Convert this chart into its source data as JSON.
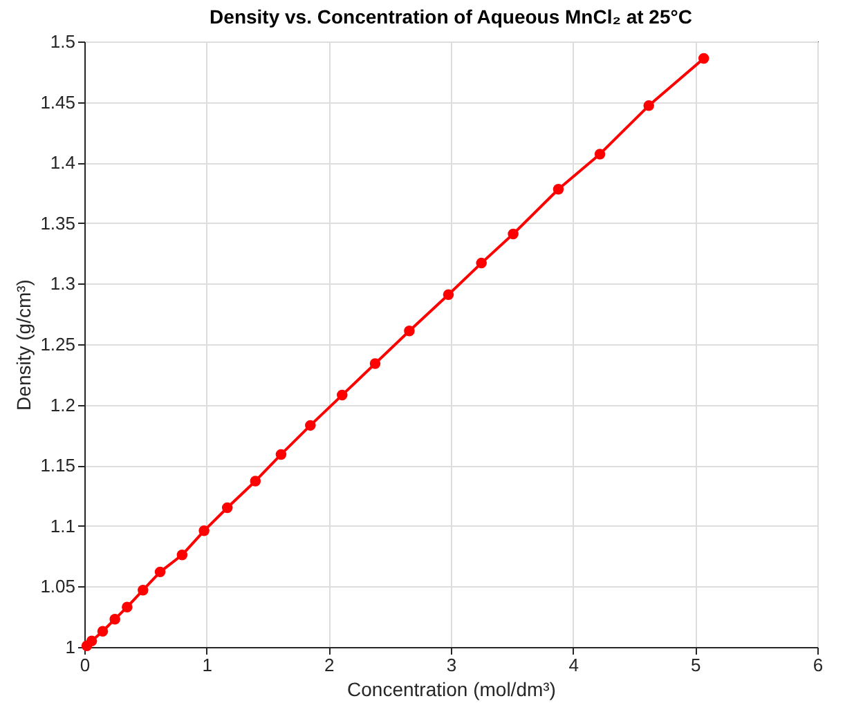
{
  "chart_data": {
    "type": "line",
    "title": "Density vs. Concentration of Aqueous MnCl₂ at 25°C",
    "xlabel": "Concentration (mol/dm³)",
    "ylabel": "Density (g/cm³)",
    "x": [
      0.02,
      0.06,
      0.15,
      0.25,
      0.35,
      0.48,
      0.62,
      0.8,
      0.98,
      1.17,
      1.4,
      1.61,
      1.85,
      2.11,
      2.38,
      2.66,
      2.98,
      3.25,
      3.51,
      3.88,
      4.22,
      4.62,
      5.07
    ],
    "series": [
      {
        "color": "#ff0000",
        "values": [
          1.001,
          1.005,
          1.013,
          1.023,
          1.033,
          1.047,
          1.062,
          1.076,
          1.096,
          1.115,
          1.137,
          1.159,
          1.183,
          1.208,
          1.234,
          1.261,
          1.291,
          1.317,
          1.341,
          1.378,
          1.407,
          1.447,
          1.486
        ]
      }
    ],
    "xlim": [
      0,
      6
    ],
    "xticks": [
      0,
      1,
      2,
      3,
      4,
      5,
      6
    ],
    "ylim": [
      1,
      1.5
    ],
    "yticks": [
      1,
      1.05,
      1.1,
      1.15,
      1.2,
      1.25,
      1.3,
      1.35,
      1.4,
      1.45,
      1.5
    ],
    "grid": true,
    "marker": "circle",
    "line_style": "solid"
  }
}
